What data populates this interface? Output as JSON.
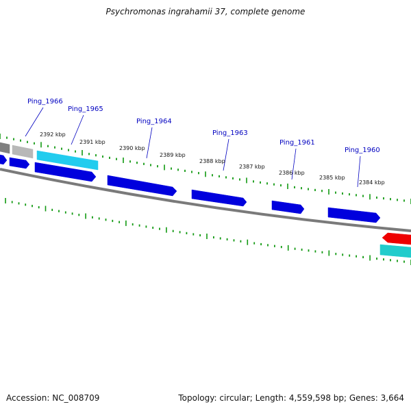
{
  "title": "Psychromonas ingrahamii 37, complete genome",
  "footer": {
    "accession": "Accession: NC_008709",
    "stats": "Topology: circular; Length: 4,559,598 bp; Genes: 3,664"
  },
  "gene_labels": [
    "Ping_1966",
    "Ping_1965",
    "Ping_1964",
    "Ping_1963",
    "Ping_1961",
    "Ping_1960"
  ],
  "tick_labels": [
    "2392 kbp",
    "2391 kbp",
    "2390 kbp",
    "2389 kbp",
    "2388 kbp",
    "2387 kbp",
    "2386 kbp",
    "2385 kbp",
    "2384 kbp"
  ],
  "colors": {
    "backbone": "#7a7a7a",
    "gene_blue": "#0000dd",
    "gene_light_blue": "#22ccee",
    "gene_gray": "#808080",
    "gene_light_gray": "#b8b8b8",
    "gene_red": "#ee0000",
    "gene_cyan": "#22cccc",
    "ticks": "#119911",
    "label": "#0000c0"
  }
}
